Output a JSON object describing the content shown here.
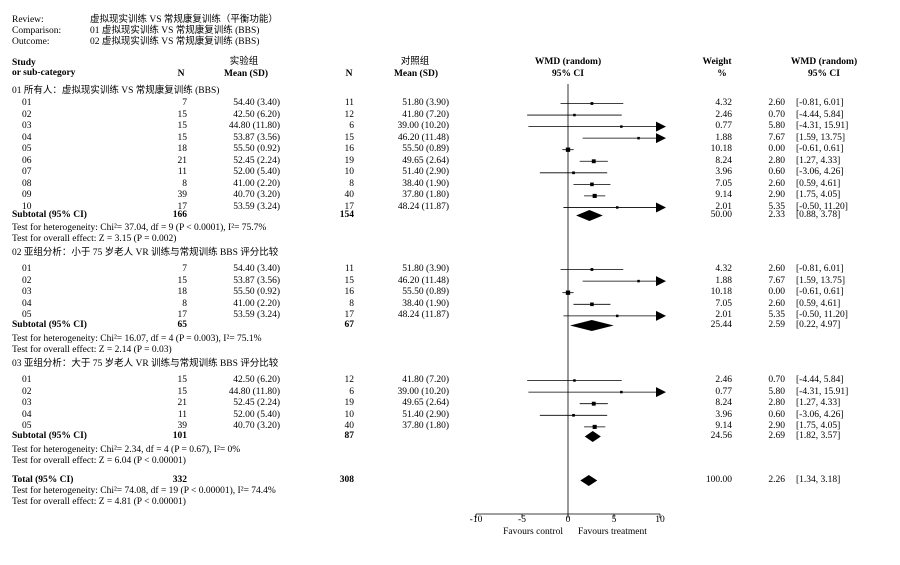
{
  "header": {
    "review_label": "Review:",
    "review_value": "虚拟现实训练 VS 常规康复训练（平衡功能）",
    "comparison_label": "Comparison:",
    "comparison_value": "01 虚拟现实训练 VS 常规康复训练 (BBS)",
    "outcome_label": "Outcome:",
    "outcome_value": "02 虚拟现实训练 VS 常规康复训练 (BBS)"
  },
  "columns": {
    "study_line1": "Study",
    "study_line2": "or sub-category",
    "exp_group": "实验组",
    "ctrl_group": "对照组",
    "n": "N",
    "mean_sd": "Mean (SD)",
    "wmd_line1": "WMD (random)",
    "wmd_line2": "95% CI",
    "weight_line1": "Weight",
    "weight_line2": "%",
    "wmd2_line1": "WMD (random)",
    "wmd2_line2": "95% CI"
  },
  "groups": [
    {
      "title": "01 所有人：虚拟现实训练 VS 常规康复训练 (BBS)",
      "studies": [
        {
          "id": "01",
          "n1": "7",
          "m1": "54.40 (3.40)",
          "n2": "11",
          "m2": "51.80 (3.90)",
          "weight": "4.32",
          "est": "2.60",
          "ci": "[-0.81, 6.01]"
        },
        {
          "id": "02",
          "n1": "15",
          "m1": "42.50 (6.20)",
          "n2": "12",
          "m2": "41.80 (7.20)",
          "weight": "2.46",
          "est": "0.70",
          "ci": "[-4.44, 5.84]"
        },
        {
          "id": "03",
          "n1": "15",
          "m1": "44.80 (11.80)",
          "n2": "6",
          "m2": "39.00 (10.20)",
          "weight": "0.77",
          "est": "5.80",
          "ci": "[-4.31, 15.91]"
        },
        {
          "id": "04",
          "n1": "15",
          "m1": "53.87 (3.56)",
          "n2": "15",
          "m2": "46.20 (11.48)",
          "weight": "1.88",
          "est": "7.67",
          "ci": "[1.59, 13.75]"
        },
        {
          "id": "05",
          "n1": "18",
          "m1": "55.50 (0.92)",
          "n2": "16",
          "m2": "55.50 (0.89)",
          "weight": "10.18",
          "est": "0.00",
          "ci": "[-0.61, 0.61]"
        },
        {
          "id": "06",
          "n1": "21",
          "m1": "52.45 (2.24)",
          "n2": "19",
          "m2": "49.65 (2.64)",
          "weight": "8.24",
          "est": "2.80",
          "ci": "[1.27, 4.33]"
        },
        {
          "id": "07",
          "n1": "11",
          "m1": "52.00 (5.40)",
          "n2": "10",
          "m2": "51.40 (2.90)",
          "weight": "3.96",
          "est": "0.60",
          "ci": "[-3.06, 4.26]"
        },
        {
          "id": "08",
          "n1": "8",
          "m1": "41.00 (2.20)",
          "n2": "8",
          "m2": "38.40 (1.90)",
          "weight": "7.05",
          "est": "2.60",
          "ci": "[0.59, 4.61]"
        },
        {
          "id": "09",
          "n1": "39",
          "m1": "40.70 (3.20)",
          "n2": "40",
          "m2": "37.80 (1.80)",
          "weight": "9.14",
          "est": "2.90",
          "ci": "[1.75, 4.05]"
        },
        {
          "id": "10",
          "n1": "17",
          "m1": "53.59 (3.24)",
          "n2": "17",
          "m2": "48.24 (11.87)",
          "weight": "2.01",
          "est": "5.35",
          "ci": "[-0.50, 11.20]"
        }
      ],
      "subtotal": {
        "label": "Subtotal (95% CI)",
        "n1": "166",
        "n2": "154",
        "weight": "50.00",
        "est": "2.33",
        "ci": "[0.88, 3.78]"
      },
      "het": "Test for heterogeneity: Chi²= 37.04, df = 9 (P < 0.0001), I²= 75.7%",
      "overall": "Test for overall effect: Z = 3.15 (P = 0.002)"
    },
    {
      "title": "02 亚组分析：小于 75 岁老人 VR 训练与常规训练 BBS 评分比较",
      "studies": [
        {
          "id": "01",
          "n1": "7",
          "m1": "54.40 (3.40)",
          "n2": "11",
          "m2": "51.80 (3.90)",
          "weight": "4.32",
          "est": "2.60",
          "ci": "[-0.81, 6.01]"
        },
        {
          "id": "02",
          "n1": "15",
          "m1": "53.87 (3.56)",
          "n2": "15",
          "m2": "46.20 (11.48)",
          "weight": "1.88",
          "est": "7.67",
          "ci": "[1.59, 13.75]"
        },
        {
          "id": "03",
          "n1": "18",
          "m1": "55.50 (0.92)",
          "n2": "16",
          "m2": "55.50 (0.89)",
          "weight": "10.18",
          "est": "0.00",
          "ci": "[-0.61, 0.61]"
        },
        {
          "id": "04",
          "n1": "8",
          "m1": "41.00 (2.20)",
          "n2": "8",
          "m2": "38.40 (1.90)",
          "weight": "7.05",
          "est": "2.60",
          "ci": "[0.59, 4.61]"
        },
        {
          "id": "05",
          "n1": "17",
          "m1": "53.59 (3.24)",
          "n2": "17",
          "m2": "48.24 (11.87)",
          "weight": "2.01",
          "est": "5.35",
          "ci": "[-0.50, 11.20]"
        }
      ],
      "subtotal": {
        "label": "Subtotal (95% CI)",
        "n1": "65",
        "n2": "67",
        "weight": "25.44",
        "est": "2.59",
        "ci": "[0.22, 4.97]"
      },
      "het": "Test for heterogeneity: Chi²= 16.07, df = 4 (P = 0.003), I²= 75.1%",
      "overall": "Test for overall effect: Z = 2.14 (P = 0.03)"
    },
    {
      "title": "03 亚组分析：大于 75 岁老人 VR 训练与常规训练 BBS 评分比较",
      "studies": [
        {
          "id": "01",
          "n1": "15",
          "m1": "42.50 (6.20)",
          "n2": "12",
          "m2": "41.80 (7.20)",
          "weight": "2.46",
          "est": "0.70",
          "ci": "[-4.44, 5.84]"
        },
        {
          "id": "02",
          "n1": "15",
          "m1": "44.80 (11.80)",
          "n2": "6",
          "m2": "39.00 (10.20)",
          "weight": "0.77",
          "est": "5.80",
          "ci": "[-4.31, 15.91]"
        },
        {
          "id": "03",
          "n1": "21",
          "m1": "52.45 (2.24)",
          "n2": "19",
          "m2": "49.65 (2.64)",
          "weight": "8.24",
          "est": "2.80",
          "ci": "[1.27, 4.33]"
        },
        {
          "id": "04",
          "n1": "11",
          "m1": "52.00 (5.40)",
          "n2": "10",
          "m2": "51.40 (2.90)",
          "weight": "3.96",
          "est": "0.60",
          "ci": "[-3.06, 4.26]"
        },
        {
          "id": "05",
          "n1": "39",
          "m1": "40.70 (3.20)",
          "n2": "40",
          "m2": "37.80 (1.80)",
          "weight": "9.14",
          "est": "2.90",
          "ci": "[1.75, 4.05]"
        }
      ],
      "subtotal": {
        "label": "Subtotal (95% CI)",
        "n1": "101",
        "n2": "87",
        "weight": "24.56",
        "est": "2.69",
        "ci": "[1.82, 3.57]"
      },
      "het": "Test for heterogeneity: Chi²= 2.34, df = 4 (P = 0.67), I²= 0%",
      "overall": "Test for overall effect: Z = 6.04 (P < 0.00001)"
    }
  ],
  "total": {
    "label": "Total (95% CI)",
    "n1": "332",
    "n2": "308",
    "weight": "100.00",
    "est": "2.26",
    "ci": "[1.34, 3.18]",
    "het": "Test for heterogeneity: Chi²= 74.08, df = 19 (P < 0.00001), I²= 74.4%",
    "overall": "Test for overall effect: Z = 4.81 (P < 0.00001)"
  },
  "chart_data": {
    "type": "forest",
    "effect_measure": "WMD (random)",
    "xlim": [
      -10,
      10
    ],
    "xticks": [
      -10,
      -5,
      0,
      5,
      10
    ],
    "xlabel_left": "Favours control",
    "xlabel_right": "Favours treatment",
    "studies": [
      {
        "group": 1,
        "study": "01",
        "est": 2.6,
        "lo": -0.81,
        "hi": 6.01,
        "weight": 4.32
      },
      {
        "group": 1,
        "study": "02",
        "est": 0.7,
        "lo": -4.44,
        "hi": 5.84,
        "weight": 2.46
      },
      {
        "group": 1,
        "study": "03",
        "est": 5.8,
        "lo": -4.31,
        "hi": 15.91,
        "weight": 0.77
      },
      {
        "group": 1,
        "study": "04",
        "est": 7.67,
        "lo": 1.59,
        "hi": 13.75,
        "weight": 1.88
      },
      {
        "group": 1,
        "study": "05",
        "est": 0.0,
        "lo": -0.61,
        "hi": 0.61,
        "weight": 10.18
      },
      {
        "group": 1,
        "study": "06",
        "est": 2.8,
        "lo": 1.27,
        "hi": 4.33,
        "weight": 8.24
      },
      {
        "group": 1,
        "study": "07",
        "est": 0.6,
        "lo": -3.06,
        "hi": 4.26,
        "weight": 3.96
      },
      {
        "group": 1,
        "study": "08",
        "est": 2.6,
        "lo": 0.59,
        "hi": 4.61,
        "weight": 7.05
      },
      {
        "group": 1,
        "study": "09",
        "est": 2.9,
        "lo": 1.75,
        "hi": 4.05,
        "weight": 9.14
      },
      {
        "group": 1,
        "study": "10",
        "est": 5.35,
        "lo": -0.5,
        "hi": 11.2,
        "weight": 2.01
      },
      {
        "group": 2,
        "study": "01",
        "est": 2.6,
        "lo": -0.81,
        "hi": 6.01,
        "weight": 4.32
      },
      {
        "group": 2,
        "study": "02",
        "est": 7.67,
        "lo": 1.59,
        "hi": 13.75,
        "weight": 1.88
      },
      {
        "group": 2,
        "study": "03",
        "est": 0.0,
        "lo": -0.61,
        "hi": 0.61,
        "weight": 10.18
      },
      {
        "group": 2,
        "study": "04",
        "est": 2.6,
        "lo": 0.59,
        "hi": 4.61,
        "weight": 7.05
      },
      {
        "group": 2,
        "study": "05",
        "est": 5.35,
        "lo": -0.5,
        "hi": 11.2,
        "weight": 2.01
      },
      {
        "group": 3,
        "study": "01",
        "est": 0.7,
        "lo": -4.44,
        "hi": 5.84,
        "weight": 2.46
      },
      {
        "group": 3,
        "study": "02",
        "est": 5.8,
        "lo": -4.31,
        "hi": 15.91,
        "weight": 0.77
      },
      {
        "group": 3,
        "study": "03",
        "est": 2.8,
        "lo": 1.27,
        "hi": 4.33,
        "weight": 8.24
      },
      {
        "group": 3,
        "study": "04",
        "est": 0.6,
        "lo": -3.06,
        "hi": 4.26,
        "weight": 3.96
      },
      {
        "group": 3,
        "study": "05",
        "est": 2.9,
        "lo": 1.75,
        "hi": 4.05,
        "weight": 9.14
      }
    ],
    "pooled": [
      {
        "group": 1,
        "est": 2.33,
        "lo": 0.88,
        "hi": 3.78
      },
      {
        "group": 2,
        "est": 2.59,
        "lo": 0.22,
        "hi": 4.97
      },
      {
        "group": 3,
        "est": 2.69,
        "lo": 1.82,
        "hi": 3.57
      },
      {
        "group": "total",
        "est": 2.26,
        "lo": 1.34,
        "hi": 3.18
      }
    ]
  }
}
